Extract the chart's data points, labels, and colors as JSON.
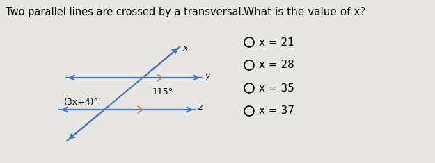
{
  "title_text": "Two parallel lines are crossed by a transversal.",
  "question_text": "What is the value of x?",
  "options": [
    "x = 21",
    "x = 28",
    "x = 35",
    "x = 37"
  ],
  "bg_color": "#e8e6e3",
  "line_color": "#4472c4",
  "tick_color": "#c8824a",
  "angle1_label": "115°",
  "angle2_label": "(3x+4)°",
  "transversal_label_top": "x",
  "line1_label_right": "y",
  "line2_label_right": "z",
  "font_size_title": 10.5,
  "font_size_options": 11,
  "font_size_question": 11,
  "font_size_labels": 9,
  "font_size_angle": 9
}
